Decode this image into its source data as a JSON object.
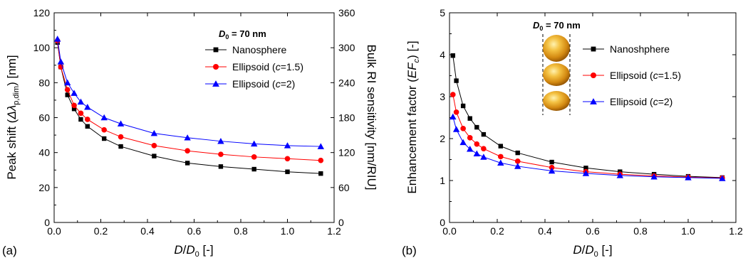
{
  "chart_data": [
    {
      "type": "line",
      "panel_label": "(a)",
      "title_annotation": {
        "prefix": "D",
        "sub": "0",
        "suffix": " = 70 nm"
      },
      "xlabel": {
        "main": "D/D",
        "sub": "0",
        "unit": " [-]"
      },
      "ylabel_left": "Peak shift (Δλp,dim) [nm]",
      "ylabel_right": "Bulk RI sensitivity [nm/RIU]",
      "xlim": [
        0,
        1.2
      ],
      "ylim": [
        0,
        120
      ],
      "ylim_right": [
        0,
        360
      ],
      "x_ticks": [
        0.0,
        0.2,
        0.4,
        0.6,
        0.8,
        1.0,
        1.2
      ],
      "x_tick_labels": [
        "0.0",
        "0.2",
        "0.4",
        "0.6",
        "0.8",
        "1.0",
        "1.2"
      ],
      "y_ticks": [
        0,
        20,
        40,
        60,
        80,
        100,
        120
      ],
      "y_tick_labels": [
        "0",
        "20",
        "40",
        "60",
        "80",
        "100",
        "120"
      ],
      "y_right_ticks": [
        0,
        60,
        120,
        180,
        240,
        300,
        360
      ],
      "y_right_tick_labels": [
        "0",
        "60",
        "120",
        "180",
        "240",
        "300",
        "360"
      ],
      "x": [
        0.0143,
        0.0286,
        0.0571,
        0.0857,
        0.1143,
        0.1429,
        0.2143,
        0.2857,
        0.4286,
        0.5714,
        0.7143,
        0.8571,
        1.0,
        1.1429
      ],
      "series": [
        {
          "name": "Nanosphere",
          "color": "#000000",
          "marker": "square",
          "values": [
            103,
            89,
            73,
            65,
            59,
            55,
            48,
            43.5,
            38,
            34,
            32,
            30.5,
            29,
            28
          ]
        },
        {
          "name": "Ellipsoid (c=1.5)",
          "name_parts": [
            "Ellipsoid (",
            "c",
            "=1.5)"
          ],
          "color": "#ff0000",
          "marker": "circle",
          "values": [
            104,
            89,
            76,
            67,
            62.5,
            59,
            53,
            49,
            44,
            41,
            39,
            37.5,
            36.5,
            35.5
          ]
        },
        {
          "name": "Ellipsoid (c=2)",
          "name_parts": [
            "Ellipsoid (",
            "c",
            "=2)"
          ],
          "color": "#0000ff",
          "marker": "triangle",
          "values": [
            105,
            92,
            80,
            74,
            69,
            66,
            60,
            56.5,
            51,
            48.5,
            46.5,
            45,
            44,
            43.5
          ]
        }
      ],
      "legend_position": "top-right",
      "grid": false
    },
    {
      "type": "line",
      "panel_label": "(b)",
      "title_annotation": {
        "prefix": "D",
        "sub": "0",
        "suffix": " = 70 nm"
      },
      "xlabel": {
        "main": "D/D",
        "sub": "0",
        "unit": " [-]"
      },
      "ylabel_left": "Enhancement factor (EFc) [-]",
      "xlim": [
        0,
        1.2
      ],
      "ylim": [
        0,
        5
      ],
      "x_ticks": [
        0.0,
        0.2,
        0.4,
        0.6,
        0.8,
        1.0,
        1.2
      ],
      "x_tick_labels": [
        "0.0",
        "0.2",
        "0.4",
        "0.6",
        "0.8",
        "1.0",
        "1.2"
      ],
      "y_ticks": [
        0,
        1,
        2,
        3,
        4,
        5
      ],
      "y_tick_labels": [
        "0",
        "1",
        "2",
        "3",
        "4",
        "5"
      ],
      "x": [
        0.0143,
        0.0286,
        0.0571,
        0.0857,
        0.1143,
        0.1429,
        0.2143,
        0.2857,
        0.4286,
        0.5714,
        0.7143,
        0.8571,
        1.0,
        1.1429
      ],
      "series": [
        {
          "name": "Nanoshphere",
          "color": "#000000",
          "marker": "square",
          "values": [
            3.98,
            3.38,
            2.78,
            2.48,
            2.27,
            2.1,
            1.82,
            1.66,
            1.44,
            1.3,
            1.21,
            1.15,
            1.1,
            1.07
          ]
        },
        {
          "name": "Ellipsoid (c=1.5)",
          "name_parts": [
            "Ellipsoid (",
            "c",
            "=1.5)"
          ],
          "color": "#ff0000",
          "marker": "circle",
          "values": [
            3.05,
            2.63,
            2.24,
            2.02,
            1.87,
            1.76,
            1.57,
            1.46,
            1.31,
            1.21,
            1.15,
            1.11,
            1.08,
            1.06
          ]
        },
        {
          "name": "Ellipsoid (c=2)",
          "name_parts": [
            "Ellipsoid (",
            "c",
            "=2)"
          ],
          "color": "#0000ff",
          "marker": "triangle",
          "values": [
            2.52,
            2.22,
            1.91,
            1.75,
            1.64,
            1.56,
            1.42,
            1.34,
            1.23,
            1.17,
            1.12,
            1.09,
            1.07,
            1.05
          ]
        }
      ],
      "inset": {
        "type": "particles-image",
        "count": 3,
        "color": "#e8a43a"
      },
      "legend_position": "top-right",
      "grid": false
    }
  ]
}
